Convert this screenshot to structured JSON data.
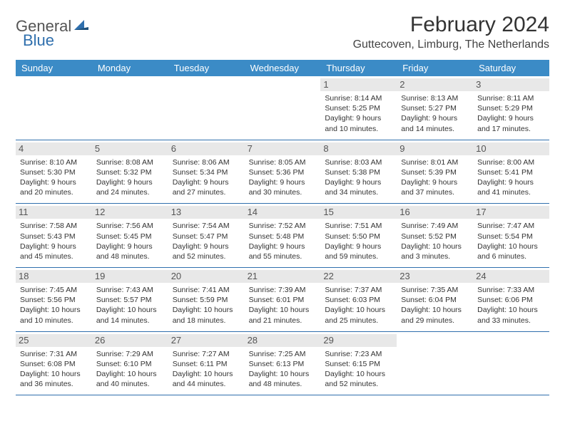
{
  "logo": {
    "word1": "General",
    "word2": "Blue"
  },
  "title": "February 2024",
  "location": "Guttecoven, Limburg, The Netherlands",
  "weekdays": [
    "Sunday",
    "Monday",
    "Tuesday",
    "Wednesday",
    "Thursday",
    "Friday",
    "Saturday"
  ],
  "colors": {
    "header_bg": "#3b8bc6",
    "header_text": "#ffffff",
    "border": "#2f6fad",
    "daynum_bg": "#e8e8e8",
    "text": "#333333"
  },
  "first_day_index": 4,
  "days": [
    {
      "n": "1",
      "sunrise": "Sunrise: 8:14 AM",
      "sunset": "Sunset: 5:25 PM",
      "daylight": "Daylight: 9 hours and 10 minutes."
    },
    {
      "n": "2",
      "sunrise": "Sunrise: 8:13 AM",
      "sunset": "Sunset: 5:27 PM",
      "daylight": "Daylight: 9 hours and 14 minutes."
    },
    {
      "n": "3",
      "sunrise": "Sunrise: 8:11 AM",
      "sunset": "Sunset: 5:29 PM",
      "daylight": "Daylight: 9 hours and 17 minutes."
    },
    {
      "n": "4",
      "sunrise": "Sunrise: 8:10 AM",
      "sunset": "Sunset: 5:30 PM",
      "daylight": "Daylight: 9 hours and 20 minutes."
    },
    {
      "n": "5",
      "sunrise": "Sunrise: 8:08 AM",
      "sunset": "Sunset: 5:32 PM",
      "daylight": "Daylight: 9 hours and 24 minutes."
    },
    {
      "n": "6",
      "sunrise": "Sunrise: 8:06 AM",
      "sunset": "Sunset: 5:34 PM",
      "daylight": "Daylight: 9 hours and 27 minutes."
    },
    {
      "n": "7",
      "sunrise": "Sunrise: 8:05 AM",
      "sunset": "Sunset: 5:36 PM",
      "daylight": "Daylight: 9 hours and 30 minutes."
    },
    {
      "n": "8",
      "sunrise": "Sunrise: 8:03 AM",
      "sunset": "Sunset: 5:38 PM",
      "daylight": "Daylight: 9 hours and 34 minutes."
    },
    {
      "n": "9",
      "sunrise": "Sunrise: 8:01 AM",
      "sunset": "Sunset: 5:39 PM",
      "daylight": "Daylight: 9 hours and 37 minutes."
    },
    {
      "n": "10",
      "sunrise": "Sunrise: 8:00 AM",
      "sunset": "Sunset: 5:41 PM",
      "daylight": "Daylight: 9 hours and 41 minutes."
    },
    {
      "n": "11",
      "sunrise": "Sunrise: 7:58 AM",
      "sunset": "Sunset: 5:43 PM",
      "daylight": "Daylight: 9 hours and 45 minutes."
    },
    {
      "n": "12",
      "sunrise": "Sunrise: 7:56 AM",
      "sunset": "Sunset: 5:45 PM",
      "daylight": "Daylight: 9 hours and 48 minutes."
    },
    {
      "n": "13",
      "sunrise": "Sunrise: 7:54 AM",
      "sunset": "Sunset: 5:47 PM",
      "daylight": "Daylight: 9 hours and 52 minutes."
    },
    {
      "n": "14",
      "sunrise": "Sunrise: 7:52 AM",
      "sunset": "Sunset: 5:48 PM",
      "daylight": "Daylight: 9 hours and 55 minutes."
    },
    {
      "n": "15",
      "sunrise": "Sunrise: 7:51 AM",
      "sunset": "Sunset: 5:50 PM",
      "daylight": "Daylight: 9 hours and 59 minutes."
    },
    {
      "n": "16",
      "sunrise": "Sunrise: 7:49 AM",
      "sunset": "Sunset: 5:52 PM",
      "daylight": "Daylight: 10 hours and 3 minutes."
    },
    {
      "n": "17",
      "sunrise": "Sunrise: 7:47 AM",
      "sunset": "Sunset: 5:54 PM",
      "daylight": "Daylight: 10 hours and 6 minutes."
    },
    {
      "n": "18",
      "sunrise": "Sunrise: 7:45 AM",
      "sunset": "Sunset: 5:56 PM",
      "daylight": "Daylight: 10 hours and 10 minutes."
    },
    {
      "n": "19",
      "sunrise": "Sunrise: 7:43 AM",
      "sunset": "Sunset: 5:57 PM",
      "daylight": "Daylight: 10 hours and 14 minutes."
    },
    {
      "n": "20",
      "sunrise": "Sunrise: 7:41 AM",
      "sunset": "Sunset: 5:59 PM",
      "daylight": "Daylight: 10 hours and 18 minutes."
    },
    {
      "n": "21",
      "sunrise": "Sunrise: 7:39 AM",
      "sunset": "Sunset: 6:01 PM",
      "daylight": "Daylight: 10 hours and 21 minutes."
    },
    {
      "n": "22",
      "sunrise": "Sunrise: 7:37 AM",
      "sunset": "Sunset: 6:03 PM",
      "daylight": "Daylight: 10 hours and 25 minutes."
    },
    {
      "n": "23",
      "sunrise": "Sunrise: 7:35 AM",
      "sunset": "Sunset: 6:04 PM",
      "daylight": "Daylight: 10 hours and 29 minutes."
    },
    {
      "n": "24",
      "sunrise": "Sunrise: 7:33 AM",
      "sunset": "Sunset: 6:06 PM",
      "daylight": "Daylight: 10 hours and 33 minutes."
    },
    {
      "n": "25",
      "sunrise": "Sunrise: 7:31 AM",
      "sunset": "Sunset: 6:08 PM",
      "daylight": "Daylight: 10 hours and 36 minutes."
    },
    {
      "n": "26",
      "sunrise": "Sunrise: 7:29 AM",
      "sunset": "Sunset: 6:10 PM",
      "daylight": "Daylight: 10 hours and 40 minutes."
    },
    {
      "n": "27",
      "sunrise": "Sunrise: 7:27 AM",
      "sunset": "Sunset: 6:11 PM",
      "daylight": "Daylight: 10 hours and 44 minutes."
    },
    {
      "n": "28",
      "sunrise": "Sunrise: 7:25 AM",
      "sunset": "Sunset: 6:13 PM",
      "daylight": "Daylight: 10 hours and 48 minutes."
    },
    {
      "n": "29",
      "sunrise": "Sunrise: 7:23 AM",
      "sunset": "Sunset: 6:15 PM",
      "daylight": "Daylight: 10 hours and 52 minutes."
    }
  ]
}
